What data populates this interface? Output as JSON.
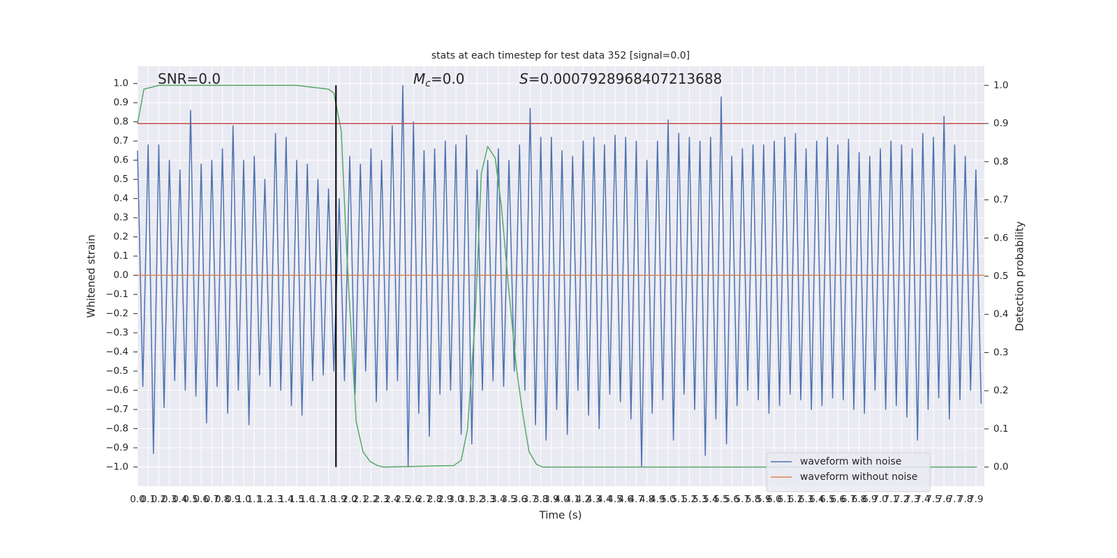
{
  "chart_data": {
    "type": "line",
    "title": "stats at each timestep for test data 352 [signal=0.0]",
    "annotations": [
      {
        "parts": [
          "SNR=0.0"
        ]
      },
      {
        "parts": [
          "M",
          "c",
          "=0.0"
        ]
      },
      {
        "parts": [
          "S",
          "=0.0007928968407213688"
        ]
      }
    ],
    "xlabel": "Time (s)",
    "ylabel": "Whitened strain",
    "y2label": "Detection probability",
    "grid": true,
    "legend": "lower right",
    "xlim": [
      0,
      7.98
    ],
    "ylim": [
      -1.1,
      1.09
    ],
    "y2lim": [
      -0.05,
      1.05
    ],
    "xticks": [
      {
        "value": 0,
        "label": "0.0"
      },
      0.1,
      0.2,
      0.3,
      0.4,
      0.5,
      0.6,
      0.7,
      0.8,
      0.9,
      {
        "value": 1,
        "label": "1.0"
      },
      1.1,
      1.2,
      1.3,
      1.4,
      1.5,
      1.6,
      1.7,
      1.8,
      1.9,
      {
        "value": 2,
        "label": "2.0"
      },
      2.1,
      2.2,
      2.3,
      2.4,
      2.5,
      2.6,
      2.7,
      2.8,
      2.9,
      {
        "value": 3,
        "label": "3.0"
      },
      3.1,
      3.2,
      3.3,
      3.4,
      3.5,
      3.6,
      3.7,
      3.8,
      3.9,
      {
        "value": 4,
        "label": "4.0"
      },
      4.1,
      4.2,
      4.3,
      4.4,
      4.5,
      4.6,
      4.7,
      4.8,
      4.9,
      {
        "value": 5,
        "label": "5.0"
      },
      5.1,
      5.2,
      5.3,
      5.4,
      5.5,
      5.6,
      5.7,
      5.8,
      5.9,
      {
        "value": 6,
        "label": "6.0"
      },
      6.1,
      6.2,
      6.3,
      6.4,
      6.5,
      6.6,
      6.7,
      6.8,
      6.9,
      {
        "value": 7,
        "label": "7.0"
      },
      7.1,
      7.2,
      7.3,
      7.4,
      7.5,
      7.6,
      7.7,
      7.8,
      7.9
    ],
    "yticks": [
      {
        "value": -1,
        "label": "−1.0"
      },
      {
        "value": -0.9,
        "label": "−0.9"
      },
      {
        "value": -0.8,
        "label": "−0.8"
      },
      {
        "value": -0.7,
        "label": "−0.7"
      },
      {
        "value": -0.6,
        "label": "−0.6"
      },
      {
        "value": -0.5,
        "label": "−0.5"
      },
      {
        "value": -0.4,
        "label": "−0.4"
      },
      {
        "value": -0.3,
        "label": "−0.3"
      },
      {
        "value": -0.2,
        "label": "−0.2"
      },
      {
        "value": -0.1,
        "label": "−0.1"
      },
      {
        "value": 0,
        "label": "0.0"
      },
      0.1,
      0.2,
      0.3,
      0.4,
      0.5,
      0.6,
      0.7,
      0.8,
      0.9,
      {
        "value": 1,
        "label": "1.0"
      }
    ],
    "y2ticks": [
      {
        "value": 0,
        "label": "0.0"
      },
      0.1,
      0.2,
      0.3,
      0.4,
      0.5,
      0.6,
      0.7,
      0.8,
      0.9,
      {
        "value": 1,
        "label": "1.0"
      }
    ],
    "series": [
      {
        "name": "waveform with noise",
        "color": "#4c72b0",
        "x": [
          0,
          0.05,
          0.1,
          0.15,
          0.2,
          0.25,
          0.3,
          0.35,
          0.4,
          0.45,
          0.5,
          0.55,
          0.6,
          0.65,
          0.7,
          0.75,
          0.8,
          0.85,
          0.9,
          0.95,
          1,
          1.05,
          1.1,
          1.15,
          1.2,
          1.25,
          1.3,
          1.35,
          1.4,
          1.45,
          1.5,
          1.55,
          1.6,
          1.65,
          1.7,
          1.75,
          1.8,
          1.85,
          1.9,
          1.95,
          2,
          2.05,
          2.1,
          2.15,
          2.2,
          2.25,
          2.3,
          2.35,
          2.4,
          2.45,
          2.5,
          2.55,
          2.6,
          2.65,
          2.7,
          2.75,
          2.8,
          2.85,
          2.9,
          2.95,
          3,
          3.05,
          3.1,
          3.15,
          3.2,
          3.25,
          3.3,
          3.35,
          3.4,
          3.45,
          3.5,
          3.55,
          3.6,
          3.65,
          3.7,
          3.75,
          3.8,
          3.85,
          3.9,
          3.95,
          4,
          4.05,
          4.1,
          4.15,
          4.2,
          4.25,
          4.3,
          4.35,
          4.4,
          4.45,
          4.5,
          4.55,
          4.6,
          4.65,
          4.7,
          4.75,
          4.8,
          4.85,
          4.9,
          4.95,
          5,
          5.05,
          5.1,
          5.15,
          5.2,
          5.25,
          5.3,
          5.35,
          5.4,
          5.45,
          5.5,
          5.55,
          5.6,
          5.65,
          5.7,
          5.75,
          5.8,
          5.85,
          5.9,
          5.95,
          6,
          6.05,
          6.1,
          6.15,
          6.2,
          6.25,
          6.3,
          6.35,
          6.4,
          6.45,
          6.5,
          6.55,
          6.6,
          6.65,
          6.7,
          6.75,
          6.8,
          6.85,
          6.9,
          6.95,
          7,
          7.05,
          7.1,
          7.15,
          7.2,
          7.25,
          7.3,
          7.35,
          7.4,
          7.45,
          7.5,
          7.55,
          7.6,
          7.65,
          7.7,
          7.75,
          7.8,
          7.85,
          7.9,
          7.95
        ],
        "values": [
          0.65,
          -0.58,
          0.68,
          -0.93,
          0.68,
          -0.69,
          0.6,
          -0.55,
          0.55,
          -0.6,
          0.86,
          -0.63,
          0.58,
          -0.77,
          0.6,
          -0.58,
          0.66,
          -0.72,
          0.78,
          -0.6,
          0.6,
          -0.78,
          0.62,
          -0.52,
          0.5,
          -0.58,
          0.74,
          -0.6,
          0.72,
          -0.68,
          0.6,
          -0.73,
          0.58,
          -0.55,
          0.5,
          -0.52,
          0.45,
          -0.5,
          0.4,
          -0.55,
          0.62,
          -0.62,
          0.58,
          -0.5,
          0.66,
          -0.66,
          0.6,
          -0.6,
          0.78,
          -0.55,
          0.99,
          -1.0,
          0.8,
          -0.72,
          0.65,
          -0.84,
          0.66,
          -0.62,
          0.7,
          -0.6,
          0.68,
          -0.83,
          0.73,
          -0.88,
          0.55,
          -0.6,
          0.6,
          -0.55,
          0.66,
          -0.58,
          0.6,
          -0.5,
          0.68,
          -0.6,
          0.87,
          -0.78,
          0.72,
          -0.86,
          0.72,
          -0.7,
          0.65,
          -0.83,
          0.62,
          -0.6,
          0.7,
          -0.73,
          0.72,
          -0.8,
          0.68,
          -0.62,
          0.73,
          -0.66,
          0.72,
          -0.75,
          0.7,
          -1.0,
          0.6,
          -0.72,
          0.7,
          -0.65,
          0.81,
          -0.86,
          0.74,
          -0.62,
          0.72,
          -0.7,
          0.7,
          -0.94,
          0.72,
          -0.75,
          0.93,
          -0.88,
          0.62,
          -0.68,
          0.66,
          -0.6,
          0.68,
          -0.65,
          0.68,
          -0.72,
          0.7,
          -0.68,
          0.72,
          -0.62,
          0.74,
          -0.65,
          0.66,
          -0.7,
          0.7,
          -0.68,
          0.72,
          -0.64,
          0.68,
          -0.65,
          0.71,
          -0.7,
          0.64,
          -0.72,
          0.62,
          -0.6,
          0.66,
          -0.7,
          0.7,
          -0.68,
          0.68,
          -0.74,
          0.66,
          -0.86,
          0.74,
          -0.7,
          0.72,
          -0.64,
          0.83,
          -0.75,
          0.68,
          -0.65,
          0.62,
          -0.6,
          0.55,
          -0.67
        ]
      },
      {
        "name": "waveform without noise",
        "color": "#dd8452",
        "x": [
          0,
          7.98
        ],
        "values": [
          0,
          0
        ]
      },
      {
        "color": "#55a868",
        "axis": "y2",
        "x": [
          0,
          0.06,
          0.2,
          1.5,
          1.8,
          1.85,
          1.92,
          1.97,
          2.06,
          2.125,
          2.19,
          2.26,
          2.32,
          2.98,
          3.05,
          3.11,
          3.18,
          3.24,
          3.3,
          3.37,
          3.43,
          3.5,
          3.57,
          3.63,
          3.69,
          3.76,
          3.82,
          7.91
        ],
        "values": [
          0.9,
          0.99,
          1.0,
          1.0,
          0.99,
          0.98,
          0.88,
          0.57,
          0.12,
          0.04,
          0.015,
          0.004,
          0,
          0.004,
          0.018,
          0.1,
          0.38,
          0.77,
          0.84,
          0.81,
          0.68,
          0.46,
          0.26,
          0.14,
          0.04,
          0.007,
          0,
          0
        ]
      }
    ],
    "hlines": [
      {
        "axis": "y2",
        "value": 0.9,
        "color": "#c44e52"
      }
    ],
    "vlines": [
      {
        "axis": "y2",
        "x": 1.87,
        "ymin": 0,
        "ymax": 1,
        "color": "#000000"
      }
    ]
  }
}
